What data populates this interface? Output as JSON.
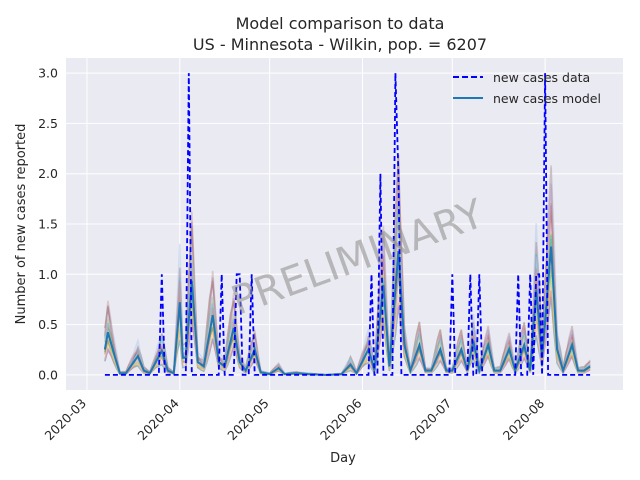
{
  "chart_data": {
    "type": "line",
    "title_line1": "Model comparison to data",
    "title_line2": "US - Minnesota - Wilkin, pop. = 6207",
    "xlabel": "Day",
    "ylabel": "Number of new cases reported",
    "watermark": "PRELIMINARY",
    "grid": true,
    "legend_position": "top-right",
    "xlim": [
      "2020-02-23",
      "2020-08-27"
    ],
    "ylim": [
      -0.15,
      3.15
    ],
    "x_ticks": [
      {
        "date": "2020-03-01",
        "label": "2020-03"
      },
      {
        "date": "2020-04-01",
        "label": "2020-04"
      },
      {
        "date": "2020-05-01",
        "label": "2020-05"
      },
      {
        "date": "2020-06-01",
        "label": "2020-06"
      },
      {
        "date": "2020-07-01",
        "label": "2020-07"
      },
      {
        "date": "2020-08-01",
        "label": "2020-08"
      }
    ],
    "y_ticks": [
      0.0,
      0.5,
      1.0,
      1.5,
      2.0,
      2.5,
      3.0
    ],
    "y_tick_labels": [
      "0.0",
      "0.5",
      "1.0",
      "1.5",
      "2.0",
      "2.5",
      "3.0"
    ],
    "legend": [
      {
        "label": "new cases data",
        "color": "#0000ff",
        "style": "dashed"
      },
      {
        "label": "new cases model",
        "color": "#1f77b4",
        "style": "solid"
      }
    ],
    "series": [
      {
        "name": "new cases data",
        "color": "#0000ff",
        "style": "dashed",
        "points": [
          [
            "2020-03-07",
            0
          ],
          [
            "2020-03-25",
            0
          ],
          [
            "2020-03-26",
            1
          ],
          [
            "2020-03-27",
            0
          ],
          [
            "2020-04-03",
            0
          ],
          [
            "2020-04-04",
            3
          ],
          [
            "2020-04-05",
            0
          ],
          [
            "2020-04-14",
            0
          ],
          [
            "2020-04-15",
            1
          ],
          [
            "2020-04-16",
            0
          ],
          [
            "2020-04-19",
            0
          ],
          [
            "2020-04-20",
            1
          ],
          [
            "2020-04-21",
            1
          ],
          [
            "2020-04-22",
            0
          ],
          [
            "2020-04-24",
            0
          ],
          [
            "2020-04-25",
            1
          ],
          [
            "2020-04-26",
            0
          ],
          [
            "2020-06-03",
            0
          ],
          [
            "2020-06-04",
            1
          ],
          [
            "2020-06-05",
            0
          ],
          [
            "2020-06-06",
            0
          ],
          [
            "2020-06-07",
            2
          ],
          [
            "2020-06-08",
            0
          ],
          [
            "2020-06-11",
            0
          ],
          [
            "2020-06-12",
            3
          ],
          [
            "2020-06-13",
            2
          ],
          [
            "2020-06-14",
            0
          ],
          [
            "2020-06-30",
            0
          ],
          [
            "2020-07-01",
            1
          ],
          [
            "2020-07-02",
            0
          ],
          [
            "2020-07-06",
            0
          ],
          [
            "2020-07-07",
            1
          ],
          [
            "2020-07-08",
            0
          ],
          [
            "2020-07-09",
            0
          ],
          [
            "2020-07-10",
            1
          ],
          [
            "2020-07-11",
            0
          ],
          [
            "2020-07-22",
            0
          ],
          [
            "2020-07-23",
            1
          ],
          [
            "2020-07-24",
            0
          ],
          [
            "2020-07-26",
            0
          ],
          [
            "2020-07-27",
            1
          ],
          [
            "2020-07-28",
            0
          ],
          [
            "2020-07-29",
            1
          ],
          [
            "2020-07-30",
            1
          ],
          [
            "2020-07-31",
            0
          ],
          [
            "2020-08-01",
            3
          ],
          [
            "2020-08-02",
            0
          ],
          [
            "2020-08-16",
            0
          ]
        ]
      }
    ],
    "model_ensemble": {
      "start": "2020-03-07",
      "end": "2020-08-16",
      "members": 16,
      "colors": [
        "#1f77b4",
        "#ff7f0e",
        "#2ca02c",
        "#d62728",
        "#9467bd",
        "#8c564b",
        "#e377c2",
        "#7f7f7f",
        "#bcbd22",
        "#17becf",
        "#aec7e8",
        "#ffbb78",
        "#98df8a",
        "#ff9896",
        "#c5b0d5",
        "#c49c94"
      ],
      "anchors": [
        [
          "2020-03-07",
          0.3
        ],
        [
          "2020-03-08",
          0.5
        ],
        [
          "2020-03-10",
          0.25
        ],
        [
          "2020-03-12",
          0.02
        ],
        [
          "2020-03-14",
          0.02
        ],
        [
          "2020-03-18",
          0.22
        ],
        [
          "2020-03-20",
          0.05
        ],
        [
          "2020-03-22",
          0.02
        ],
        [
          "2020-03-26",
          0.28
        ],
        [
          "2020-03-28",
          0.05
        ],
        [
          "2020-03-30",
          0.02
        ],
        [
          "2020-04-01",
          0.85
        ],
        [
          "2020-04-02",
          0.2
        ],
        [
          "2020-04-03",
          0.2
        ],
        [
          "2020-04-05",
          1.1
        ],
        [
          "2020-04-07",
          0.15
        ],
        [
          "2020-04-09",
          0.1
        ],
        [
          "2020-04-12",
          0.7
        ],
        [
          "2020-04-14",
          0.15
        ],
        [
          "2020-04-16",
          0.1
        ],
        [
          "2020-04-19",
          0.55
        ],
        [
          "2020-04-21",
          0.15
        ],
        [
          "2020-04-23",
          0.05
        ],
        [
          "2020-04-26",
          0.3
        ],
        [
          "2020-04-28",
          0.03
        ],
        [
          "2020-05-01",
          0.01
        ],
        [
          "2020-05-04",
          0.08
        ],
        [
          "2020-05-06",
          0.01
        ],
        [
          "2020-05-10",
          0.02
        ],
        [
          "2020-05-14",
          0.01
        ],
        [
          "2020-05-20",
          0.0
        ],
        [
          "2020-05-25",
          0.01
        ],
        [
          "2020-05-28",
          0.12
        ],
        [
          "2020-05-30",
          0.02
        ],
        [
          "2020-06-03",
          0.3
        ],
        [
          "2020-06-05",
          0.05
        ],
        [
          "2020-06-08",
          1.05
        ],
        [
          "2020-06-10",
          0.1
        ],
        [
          "2020-06-13",
          1.45
        ],
        [
          "2020-06-15",
          0.35
        ],
        [
          "2020-06-17",
          0.05
        ],
        [
          "2020-06-20",
          0.35
        ],
        [
          "2020-06-22",
          0.05
        ],
        [
          "2020-06-24",
          0.05
        ],
        [
          "2020-06-27",
          0.3
        ],
        [
          "2020-06-29",
          0.05
        ],
        [
          "2020-07-01",
          0.05
        ],
        [
          "2020-07-04",
          0.3
        ],
        [
          "2020-07-06",
          0.05
        ],
        [
          "2020-07-08",
          0.4
        ],
        [
          "2020-07-10",
          0.05
        ],
        [
          "2020-07-13",
          0.35
        ],
        [
          "2020-07-15",
          0.05
        ],
        [
          "2020-07-17",
          0.05
        ],
        [
          "2020-07-20",
          0.3
        ],
        [
          "2020-07-22",
          0.05
        ],
        [
          "2020-07-25",
          0.35
        ],
        [
          "2020-07-27",
          0.05
        ],
        [
          "2020-07-29",
          1.0
        ],
        [
          "2020-07-31",
          0.2
        ],
        [
          "2020-08-03",
          1.5
        ],
        [
          "2020-08-05",
          0.3
        ],
        [
          "2020-08-07",
          0.05
        ],
        [
          "2020-08-10",
          0.35
        ],
        [
          "2020-08-12",
          0.05
        ],
        [
          "2020-08-14",
          0.05
        ],
        [
          "2020-08-16",
          0.1
        ]
      ]
    }
  }
}
